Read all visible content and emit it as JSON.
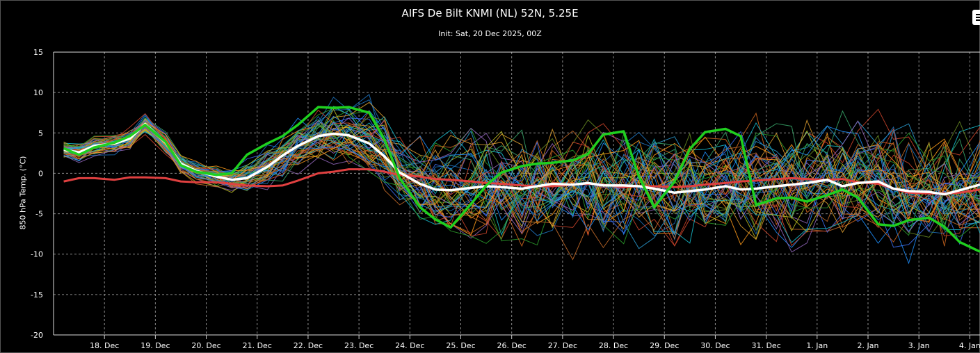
{
  "title": "AIFS De Bilt KNMI (NL) 52N, 5.25E",
  "subtitle": "Init: Sat, 20 Dec 2025, 00Z",
  "menu_icon": "hamburger-menu-icon",
  "chart_data": {
    "type": "line",
    "title": "AIFS De Bilt KNMI (NL) 52N, 5.25E",
    "subtitle": "Init: Sat, 20 Dec 2025, 00Z",
    "ylabel": "850 hPa Temp. (°C)",
    "xlabel": "",
    "ylim": [
      -20,
      15
    ],
    "yticks": [
      15,
      10,
      5,
      0,
      -5,
      -10,
      -15,
      -20
    ],
    "xlim": [
      17.0,
      35.2
    ],
    "x_tick_values": [
      18,
      19,
      20,
      21,
      22,
      23,
      24,
      25,
      26,
      27,
      28,
      29,
      30,
      31,
      32,
      33,
      34,
      35
    ],
    "x_tick_labels": [
      "18. Dec",
      "19. Dec",
      "20. Dec",
      "21. Dec",
      "22. Dec",
      "23. Dec",
      "24. Dec",
      "25. Dec",
      "26. Dec",
      "27. Dec",
      "28. Dec",
      "29. Dec",
      "30. Dec",
      "31. Dec",
      "1. Jan",
      "2. Jan",
      "3. Jan",
      "4. Jan"
    ],
    "grid": true,
    "series": [
      {
        "role": "mean",
        "color": "#ffffff",
        "x": [
          17.2,
          17.5,
          17.8,
          18.2,
          18.5,
          18.8,
          19.2,
          19.5,
          19.8,
          20.2,
          20.5,
          20.8,
          21.2,
          21.5,
          21.8,
          22.2,
          22.5,
          22.8,
          23.2,
          23.5,
          23.8,
          24.2,
          24.5,
          24.8,
          25.2,
          25.5,
          25.8,
          26.2,
          26.5,
          26.8,
          27.2,
          27.5,
          27.8,
          28.2,
          28.5,
          28.8,
          29.2,
          29.5,
          29.8,
          30.2,
          30.5,
          30.8,
          31.2,
          31.5,
          31.8,
          32.2,
          32.5,
          32.8,
          33.2,
          33.5,
          33.8,
          34.2,
          34.5,
          34.8,
          35.2
        ],
        "y": [
          2.9,
          2.6,
          3.4,
          3.7,
          4.3,
          6.1,
          3.8,
          1.2,
          0.3,
          -0.4,
          -0.8,
          -0.6,
          0.8,
          2.2,
          3.4,
          4.6,
          4.9,
          4.7,
          3.7,
          2.1,
          0.1,
          -1.3,
          -2.0,
          -2.1,
          -1.8,
          -1.6,
          -1.7,
          -1.9,
          -1.6,
          -1.3,
          -1.4,
          -1.2,
          -1.5,
          -1.5,
          -1.6,
          -1.9,
          -2.4,
          -2.2,
          -2.0,
          -1.6,
          -2.0,
          -1.9,
          -1.6,
          -1.4,
          -1.2,
          -0.8,
          -1.6,
          -1.2,
          -1.0,
          -1.9,
          -2.2,
          -2.3,
          -2.6,
          -2.1,
          -1.4
        ]
      },
      {
        "role": "climatology",
        "color": "#e04040",
        "x": [
          17.2,
          17.5,
          17.8,
          18.2,
          18.5,
          18.8,
          19.2,
          19.5,
          19.8,
          20.2,
          20.5,
          20.8,
          21.2,
          21.5,
          21.8,
          22.2,
          22.5,
          22.8,
          23.2,
          23.5,
          23.8,
          24.2,
          24.5,
          24.8,
          25.2,
          25.5,
          25.8,
          26.2,
          26.5,
          26.8,
          27.2,
          27.5,
          27.8,
          28.2,
          28.5,
          28.8,
          29.2,
          29.5,
          29.8,
          30.2,
          30.5,
          30.8,
          31.2,
          31.5,
          31.8,
          32.2,
          32.5,
          32.8,
          33.2,
          33.5,
          33.8,
          34.2,
          34.5,
          34.8,
          35.2
        ],
        "y": [
          -1.0,
          -0.6,
          -0.6,
          -0.8,
          -0.5,
          -0.5,
          -0.6,
          -1.0,
          -1.1,
          -1.1,
          -1.3,
          -1.5,
          -1.6,
          -1.5,
          -0.9,
          0.0,
          0.2,
          0.5,
          0.5,
          0.2,
          -0.2,
          -0.4,
          -0.7,
          -0.8,
          -1.0,
          -1.2,
          -1.3,
          -1.5,
          -1.6,
          -1.6,
          -1.4,
          -1.3,
          -1.4,
          -1.7,
          -1.6,
          -1.6,
          -1.7,
          -1.6,
          -1.4,
          -1.2,
          -1.0,
          -0.9,
          -0.7,
          -0.6,
          -0.7,
          -0.8,
          -0.7,
          -1.1,
          -1.3,
          -1.9,
          -2.4,
          -2.5,
          -2.5,
          -2.4,
          -2.0
        ]
      },
      {
        "role": "control",
        "color": "#1fcf1f",
        "x": [
          17.2,
          17.5,
          17.8,
          18.2,
          18.5,
          18.8,
          19.2,
          19.5,
          19.8,
          20.2,
          20.5,
          20.8,
          21.2,
          21.5,
          21.8,
          22.2,
          22.5,
          22.8,
          23.2,
          23.5,
          23.8,
          24.2,
          24.5,
          24.8,
          25.2,
          25.5,
          25.8,
          26.2,
          26.5,
          26.8,
          27.2,
          27.5,
          27.8,
          28.2,
          28.5,
          28.8,
          29.2,
          29.5,
          29.8,
          30.2,
          30.5,
          30.8,
          31.2,
          31.5,
          31.8,
          32.2,
          32.5,
          32.8,
          33.2,
          33.5,
          33.8,
          34.2,
          34.5,
          34.8,
          35.2
        ],
        "y": [
          3.1,
          2.3,
          3.2,
          3.8,
          4.6,
          6.0,
          3.9,
          1.0,
          0.2,
          -0.2,
          0.0,
          2.3,
          3.7,
          4.6,
          6.0,
          8.2,
          8.1,
          8.2,
          7.5,
          4.2,
          -0.6,
          -4.2,
          -5.7,
          -6.7,
          -3.8,
          -1.5,
          0.1,
          0.9,
          1.2,
          1.3,
          1.6,
          2.4,
          4.8,
          5.2,
          -0.4,
          -4.2,
          -1.0,
          3.0,
          5.1,
          5.5,
          4.6,
          -3.9,
          -3.1,
          -3.0,
          -3.5,
          -2.7,
          -2.0,
          -3.0,
          -6.3,
          -6.5,
          -5.8,
          -5.5,
          -6.6,
          -8.5,
          -9.7
        ]
      }
    ],
    "ensemble_members": 50
  }
}
